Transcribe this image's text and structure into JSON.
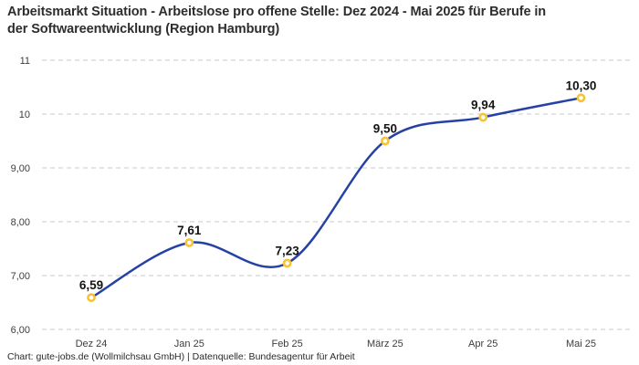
{
  "footer": {
    "credit": "Chart: gute-jobs.de (Wollmilchsau GmbH) | Datenquelle: Bundesagentur für Arbeit"
  },
  "chart_data": {
    "type": "line",
    "title": "Arbeitsmarkt Situation - Arbeitslose pro offene Stelle: Dez 2024 - Mai 2025 für Berufe in der Softwareentwicklung (Region Hamburg)",
    "categories": [
      "Dez 24",
      "Jan 25",
      "Feb 25",
      "März 25",
      "Apr 25",
      "Mai 25"
    ],
    "values": [
      6.59,
      7.61,
      7.23,
      9.5,
      9.94,
      10.3
    ],
    "value_labels": [
      "6,59",
      "7,61",
      "7,23",
      "9,50",
      "9,94",
      "10,30"
    ],
    "ylim": [
      6,
      11
    ],
    "ytick_values": [
      11,
      10,
      9,
      8,
      7,
      6
    ],
    "ytick_labels": [
      "11",
      "10",
      "9,00",
      "8,00",
      "7,00",
      "6,00"
    ],
    "grid": "horizontal dashed",
    "legend": "none",
    "line_color": "#2641a5",
    "marker_stroke_color": "#f9c232",
    "marker_fill_color": "#ffffff",
    "grid_color": "#c9c9c9",
    "smooth": true
  }
}
